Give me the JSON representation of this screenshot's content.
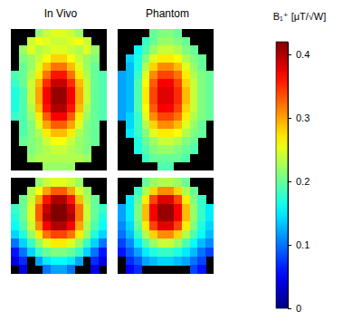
{
  "chart_data": {
    "type": "heatmap",
    "column_titles": [
      "In Vivo",
      "Phantom"
    ],
    "color_title": "B₁⁺ [μT/√W]",
    "color_range": [
      0,
      0.42
    ],
    "color_ticks": [
      0,
      0.1,
      0.2,
      0.3,
      0.4
    ],
    "panels": [
      {
        "cells": [
          [
            null,
            null,
            null,
            0.22,
            0.24,
            0.25,
            0.25,
            0.24,
            0.22,
            null,
            null,
            null
          ],
          [
            null,
            null,
            0.24,
            0.26,
            0.25,
            0.24,
            0.24,
            0.25,
            0.26,
            0.24,
            null,
            null
          ],
          [
            null,
            0.22,
            0.25,
            0.23,
            0.24,
            0.25,
            0.25,
            0.24,
            0.23,
            0.25,
            0.22,
            null
          ],
          [
            null,
            0.21,
            0.22,
            0.24,
            0.26,
            0.28,
            0.28,
            0.26,
            0.24,
            0.22,
            0.21,
            null
          ],
          [
            null,
            0.2,
            0.22,
            0.25,
            0.29,
            0.32,
            0.32,
            0.29,
            0.25,
            0.22,
            0.2,
            null
          ],
          [
            0.19,
            0.2,
            0.23,
            0.27,
            0.32,
            0.36,
            0.36,
            0.32,
            0.27,
            0.23,
            0.2,
            0.19
          ],
          [
            0.18,
            0.2,
            0.24,
            0.29,
            0.35,
            0.39,
            0.39,
            0.35,
            0.29,
            0.24,
            0.2,
            0.19
          ],
          [
            0.17,
            0.19,
            0.24,
            0.3,
            0.37,
            0.41,
            0.41,
            0.37,
            0.3,
            0.24,
            0.2,
            0.19
          ],
          [
            0.17,
            0.19,
            0.24,
            0.3,
            0.37,
            0.41,
            0.41,
            0.37,
            0.3,
            0.24,
            0.2,
            0.19
          ],
          [
            0.17,
            0.19,
            0.23,
            0.29,
            0.36,
            0.4,
            0.4,
            0.36,
            0.29,
            0.23,
            0.2,
            0.19
          ],
          [
            0.18,
            0.19,
            0.22,
            0.27,
            0.33,
            0.37,
            0.37,
            0.33,
            0.27,
            0.22,
            0.2,
            0.19
          ],
          [
            null,
            0.19,
            0.21,
            0.25,
            0.3,
            0.33,
            0.33,
            0.3,
            0.25,
            0.21,
            0.2,
            null
          ],
          [
            null,
            0.19,
            0.21,
            0.23,
            0.27,
            0.29,
            0.29,
            0.27,
            0.23,
            0.21,
            0.2,
            null
          ],
          [
            null,
            0.2,
            0.21,
            0.22,
            0.24,
            0.26,
            0.26,
            0.24,
            0.22,
            0.21,
            0.2,
            null
          ],
          [
            null,
            null,
            0.21,
            0.22,
            0.23,
            0.24,
            0.24,
            0.23,
            0.22,
            0.21,
            null,
            null
          ],
          [
            null,
            null,
            0.22,
            0.23,
            0.23,
            0.23,
            0.23,
            0.23,
            0.23,
            0.22,
            null,
            null
          ],
          [
            null,
            null,
            null,
            null,
            0.22,
            0.22,
            0.22,
            0.22,
            null,
            null,
            null,
            null
          ]
        ]
      },
      {
        "cells": [
          [
            null,
            null,
            null,
            null,
            0.2,
            0.21,
            0.21,
            0.2,
            null,
            null,
            null,
            null
          ],
          [
            null,
            null,
            null,
            0.18,
            0.2,
            0.22,
            0.22,
            0.21,
            0.2,
            null,
            null,
            null
          ],
          [
            null,
            null,
            0.16,
            0.19,
            0.22,
            0.24,
            0.24,
            0.23,
            0.21,
            0.2,
            null,
            null
          ],
          [
            null,
            0.14,
            0.17,
            0.21,
            0.25,
            0.27,
            0.27,
            0.26,
            0.23,
            0.21,
            0.2,
            null
          ],
          [
            null,
            0.13,
            0.17,
            0.23,
            0.28,
            0.31,
            0.31,
            0.29,
            0.25,
            0.22,
            0.2,
            null
          ],
          [
            0.12,
            0.13,
            0.18,
            0.25,
            0.31,
            0.34,
            0.34,
            0.32,
            0.27,
            0.23,
            0.21,
            0.2
          ],
          [
            0.12,
            0.13,
            0.19,
            0.26,
            0.33,
            0.37,
            0.37,
            0.34,
            0.28,
            0.24,
            0.21,
            0.2
          ],
          [
            0.12,
            0.13,
            0.19,
            0.27,
            0.34,
            0.38,
            0.38,
            0.35,
            0.29,
            0.24,
            0.21,
            0.2
          ],
          [
            0.12,
            0.13,
            0.19,
            0.27,
            0.34,
            0.38,
            0.38,
            0.35,
            0.29,
            0.24,
            0.21,
            0.2
          ],
          [
            0.12,
            0.13,
            0.19,
            0.26,
            0.33,
            0.37,
            0.37,
            0.34,
            0.28,
            0.24,
            0.21,
            0.2
          ],
          [
            0.12,
            0.14,
            0.18,
            0.25,
            0.31,
            0.34,
            0.34,
            0.32,
            0.27,
            0.23,
            0.21,
            0.2
          ],
          [
            null,
            0.14,
            0.18,
            0.23,
            0.28,
            0.31,
            0.31,
            0.29,
            0.25,
            0.22,
            0.2,
            null
          ],
          [
            null,
            0.15,
            0.18,
            0.21,
            0.25,
            0.27,
            0.27,
            0.26,
            0.23,
            0.21,
            0.2,
            null
          ],
          [
            null,
            null,
            0.17,
            0.2,
            0.22,
            0.24,
            0.24,
            0.23,
            0.21,
            0.2,
            null,
            null
          ],
          [
            null,
            null,
            0.17,
            0.19,
            0.21,
            0.22,
            0.22,
            0.21,
            0.2,
            0.19,
            null,
            null
          ],
          [
            null,
            null,
            null,
            0.18,
            0.2,
            0.2,
            0.2,
            0.2,
            0.19,
            null,
            null,
            null
          ],
          [
            null,
            null,
            null,
            null,
            null,
            0.19,
            0.19,
            null,
            null,
            null,
            null,
            null
          ]
        ]
      },
      {
        "cells": [
          [
            null,
            null,
            null,
            0.22,
            0.24,
            0.25,
            0.25,
            0.24,
            0.22,
            null,
            null,
            null
          ],
          [
            null,
            null,
            0.23,
            0.26,
            0.3,
            0.33,
            0.33,
            0.3,
            0.25,
            0.22,
            null,
            null
          ],
          [
            null,
            0.2,
            0.24,
            0.3,
            0.36,
            0.4,
            0.4,
            0.36,
            0.29,
            0.23,
            0.2,
            null
          ],
          [
            0.18,
            0.2,
            0.25,
            0.33,
            0.39,
            0.42,
            0.42,
            0.39,
            0.32,
            0.24,
            0.2,
            0.18
          ],
          [
            0.17,
            0.2,
            0.25,
            0.33,
            0.4,
            0.42,
            0.42,
            0.4,
            0.32,
            0.24,
            0.2,
            0.17
          ],
          [
            0.16,
            0.19,
            0.24,
            0.31,
            0.37,
            0.4,
            0.4,
            0.37,
            0.3,
            0.23,
            0.19,
            0.16
          ],
          [
            0.14,
            0.17,
            0.22,
            0.27,
            0.32,
            0.34,
            0.34,
            0.32,
            0.27,
            0.22,
            0.17,
            0.14
          ],
          [
            0.1,
            0.14,
            0.18,
            0.22,
            0.25,
            0.27,
            0.27,
            0.25,
            0.22,
            0.18,
            0.14,
            0.1
          ],
          [
            0.06,
            0.1,
            0.14,
            0.18,
            0.2,
            0.21,
            0.21,
            0.2,
            0.18,
            0.14,
            0.1,
            0.06
          ],
          [
            0.04,
            0.07,
            null,
            0.12,
            0.15,
            0.16,
            0.16,
            0.15,
            0.12,
            null,
            0.07,
            0.04
          ],
          [
            null,
            0.04,
            null,
            null,
            0.1,
            0.12,
            0.12,
            0.1,
            null,
            null,
            0.04,
            null
          ]
        ]
      },
      {
        "cells": [
          [
            null,
            null,
            null,
            0.2,
            0.22,
            0.23,
            0.23,
            0.22,
            0.2,
            null,
            null,
            null
          ],
          [
            null,
            null,
            0.18,
            0.23,
            0.28,
            0.31,
            0.31,
            0.28,
            0.23,
            0.2,
            null,
            null
          ],
          [
            null,
            0.15,
            0.2,
            0.27,
            0.34,
            0.38,
            0.38,
            0.34,
            0.27,
            0.21,
            0.18,
            null
          ],
          [
            0.12,
            0.15,
            0.21,
            0.29,
            0.37,
            0.41,
            0.41,
            0.37,
            0.29,
            0.22,
            0.18,
            0.15
          ],
          [
            0.12,
            0.15,
            0.21,
            0.29,
            0.37,
            0.41,
            0.41,
            0.37,
            0.29,
            0.22,
            0.18,
            0.15
          ],
          [
            0.11,
            0.14,
            0.2,
            0.27,
            0.34,
            0.38,
            0.38,
            0.34,
            0.27,
            0.21,
            0.17,
            0.14
          ],
          [
            0.1,
            0.13,
            0.18,
            0.23,
            0.28,
            0.31,
            0.31,
            0.28,
            0.23,
            0.19,
            0.16,
            0.13
          ],
          [
            0.08,
            0.11,
            0.15,
            0.19,
            0.22,
            0.24,
            0.24,
            0.22,
            0.19,
            0.16,
            0.13,
            0.11
          ],
          [
            0.06,
            0.09,
            0.12,
            0.15,
            0.17,
            0.18,
            0.18,
            0.17,
            0.15,
            0.13,
            0.1,
            0.08
          ],
          [
            null,
            0.07,
            0.09,
            0.12,
            0.13,
            0.14,
            0.14,
            0.13,
            0.12,
            0.1,
            0.08,
            null
          ],
          [
            null,
            0.05,
            0.07,
            null,
            null,
            null,
            null,
            null,
            null,
            0.08,
            0.06,
            null
          ]
        ]
      }
    ]
  }
}
